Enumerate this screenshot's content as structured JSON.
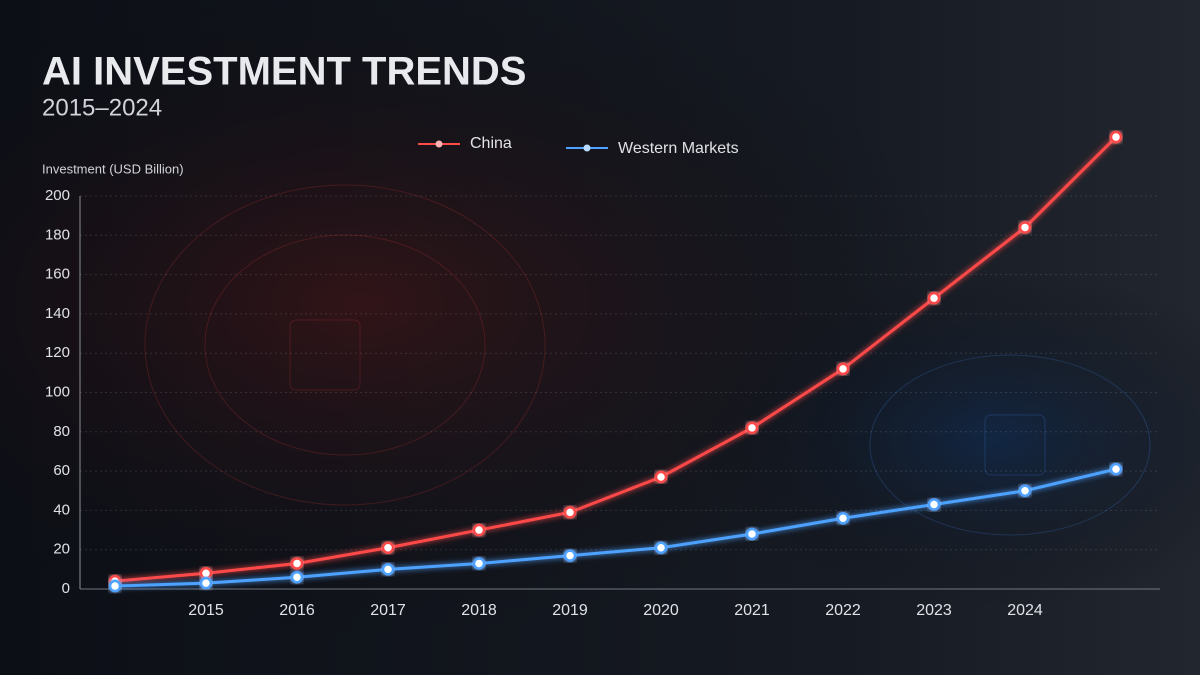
{
  "chart_data": {
    "type": "line",
    "title": "AI INVESTMENT TRENDS",
    "subtitle": "2015–2024",
    "y_axis_label": "Investment (USD Billion)",
    "categories": [
      null,
      "2015",
      "2016",
      "2017",
      "2018",
      "2019",
      "2020",
      "2021",
      "2022",
      "2023",
      "2024",
      null
    ],
    "series": [
      {
        "name": "China",
        "color": "#ff4a4a",
        "values": [
          4,
          8,
          13,
          21,
          30,
          39,
          57,
          82,
          112,
          148,
          184,
          230
        ]
      },
      {
        "name": "Western Markets",
        "color": "#4ea1ff",
        "values": [
          1.5,
          3,
          6,
          10,
          13,
          17,
          21,
          28,
          36,
          43,
          50,
          61
        ]
      }
    ],
    "ylim": [
      0,
      200
    ],
    "yticks": [
      0,
      20,
      40,
      60,
      80,
      100,
      120,
      140,
      160,
      180,
      200
    ],
    "grid": true
  }
}
